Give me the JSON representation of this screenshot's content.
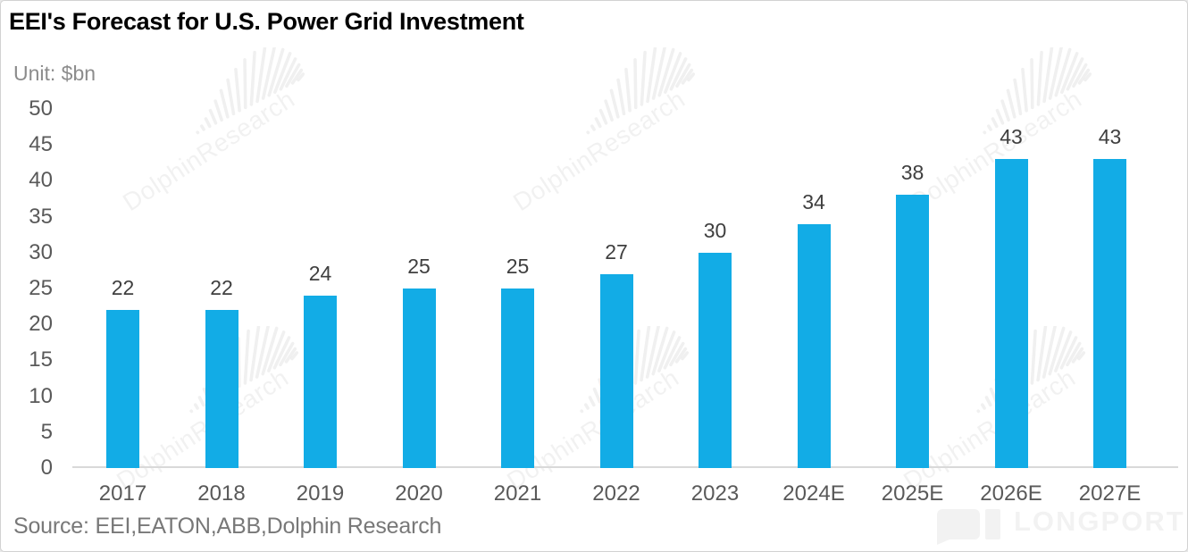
{
  "chart": {
    "title": "EEI's Forecast for U.S. Power Grid Investment",
    "unit_label": "Unit: $bn",
    "source": "Source: EEI,EATON,ABB,Dolphin Research"
  },
  "chart_data": {
    "type": "bar",
    "title": "EEI's Forecast for U.S. Power Grid Investment",
    "unit": "$bn",
    "categories": [
      "2017",
      "2018",
      "2019",
      "2020",
      "2021",
      "2022",
      "2023",
      "2024E",
      "2025E",
      "2026E",
      "2027E"
    ],
    "values": [
      22,
      22,
      24,
      25,
      25,
      27,
      30,
      34,
      38,
      43,
      43
    ],
    "xlabel": "",
    "ylabel": "",
    "ylim": [
      0,
      50
    ],
    "yticks": [
      0,
      5,
      10,
      15,
      20,
      25,
      30,
      35,
      40,
      45,
      50
    ],
    "grid": false,
    "legend_position": "none",
    "bar_color": "#12ACE6",
    "value_label_color": "#3f3f3f",
    "axis_tick_color": "#595959",
    "axis_line_color": "#d9d9d9"
  },
  "watermark": {
    "text": "DolphinResearch",
    "brand": "LONGPORT"
  }
}
